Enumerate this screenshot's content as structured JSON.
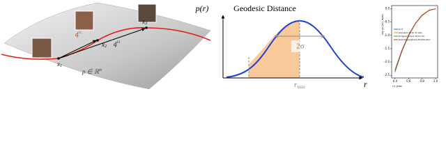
{
  "manifold": {
    "points": [
      {
        "base": "x",
        "sub": "1"
      },
      {
        "base": "x",
        "sub": "2"
      },
      {
        "base": "x",
        "sub": "3"
      }
    ],
    "distances": [
      {
        "base": "d",
        "sup": "12",
        "sub": "F"
      },
      {
        "base": "d",
        "sup": "13",
        "sub": "F"
      }
    ],
    "space": {
      "base": "p ∈ ℝ",
      "sup": "m"
    }
  },
  "schematic": {
    "y_label": "p(r)",
    "title": "Geodesic Distance",
    "width_label": "2σ",
    "peak_label": "r",
    "peak_sub": "max",
    "x_label": "r"
  },
  "chart_data": {
    "type": "line",
    "x_label": "r/r_max",
    "y_label": "log p(r)/p(r_max)",
    "x": [
      0.4,
      0.5,
      0.6,
      0.7,
      0.8,
      0.9,
      1.0
    ],
    "series": [
      {
        "name": "K=7",
        "color": "#1f77b4",
        "dash": true,
        "values": [
          -2.38,
          -1.62,
          -1.02,
          -0.57,
          -0.26,
          -0.07,
          0.0
        ]
      },
      {
        "name": "Gaussian fit for R ratio",
        "color": "#ff7f0e",
        "values": [
          -2.32,
          -1.58,
          -1.0,
          -0.56,
          -0.25,
          -0.06,
          0.0
        ]
      },
      {
        "name": "D-Hypersphere Fit for Du",
        "color": "#2ca02c",
        "values": [
          -2.35,
          -1.6,
          -1.01,
          -0.56,
          -0.25,
          -0.06,
          0.0
        ]
      },
      {
        "name": "Dest Hypersphere Distribution",
        "color": "#d62728",
        "values": [
          -2.3,
          -1.57,
          -0.99,
          -0.55,
          -0.24,
          -0.06,
          0.0
        ]
      }
    ],
    "xlim": [
      0.35,
      1.03
    ],
    "xticks": [
      0.4,
      0.6,
      0.8,
      {
        "value": 1,
        "label": "1.0"
      }
    ],
    "ylim": [
      -2.6,
      0.12
    ],
    "yticks": [
      {
        "value": 0,
        "label": "0.0"
      },
      -0.5,
      {
        "value": -1,
        "label": "-1.0"
      },
      -1.5,
      {
        "value": -2,
        "label": "-2.0"
      },
      -2.5
    ],
    "grid": false,
    "legend": "center-left"
  }
}
